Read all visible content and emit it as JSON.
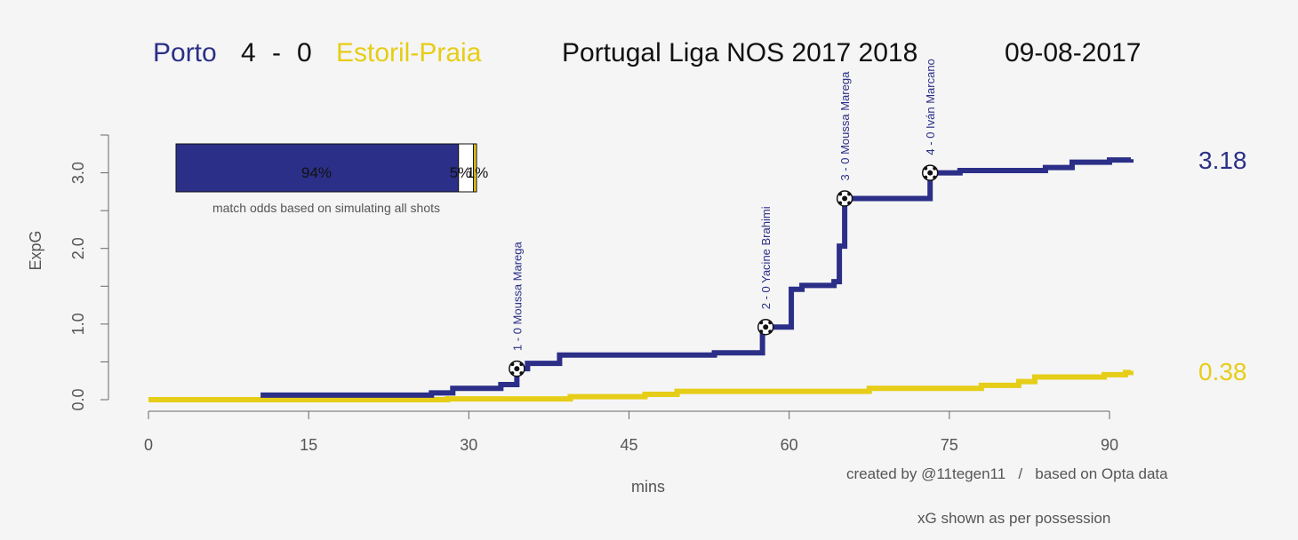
{
  "header": {
    "home_team": "Porto",
    "home_score": "4",
    "score_sep": "-",
    "away_score": "0",
    "away_team": "Estoril-Praia",
    "competition": "Portugal Liga NOS 2017 2018",
    "date": "09-08-2017"
  },
  "colors": {
    "home": "#2b2f87",
    "away": "#e6cd17",
    "axis": "#666666",
    "background": "#f5f5f5"
  },
  "odds_box": {
    "caption": "match odds based on simulating all shots",
    "home_win_pct": 94,
    "draw_pct": 5,
    "away_win_pct": 1,
    "home_label": "94%",
    "draw_label": "5%",
    "away_label": "1%"
  },
  "credits": {
    "created_by": "created by @11tegen11   /   based on Opta data",
    "possession_note": "xG shown as per possession"
  },
  "chart_data": {
    "type": "line",
    "step": true,
    "xlabel": "mins",
    "ylabel": "ExpG",
    "xlim": [
      0,
      92
    ],
    "ylim": [
      0,
      3.5
    ],
    "x_ticks": [
      0,
      15,
      30,
      45,
      60,
      75,
      90
    ],
    "y_ticks": [
      0,
      0.5,
      1.0,
      1.5,
      2.0,
      2.5,
      3.0,
      3.5
    ],
    "y_tick_labels": [
      {
        "value": 0,
        "label": "0.0"
      },
      {
        "value": 1.0,
        "label": "1.0"
      },
      {
        "value": 2.0,
        "label": "2.0"
      },
      {
        "value": 3.0,
        "label": "3.0"
      }
    ],
    "series": [
      {
        "name": "Porto",
        "final_label": "3.18",
        "x": [
          10.5,
          26.5,
          28.5,
          33,
          34.5,
          35.5,
          38.5,
          53,
          57.5,
          57.8,
          60.2,
          61.2,
          64.2,
          64.7,
          65.2,
          73.2,
          76,
          84,
          86.5,
          90,
          92
        ],
        "y": [
          0.06,
          0.09,
          0.15,
          0.2,
          0.41,
          0.48,
          0.59,
          0.62,
          0.95,
          0.96,
          1.46,
          1.51,
          1.56,
          2.03,
          2.66,
          3.0,
          3.03,
          3.07,
          3.14,
          3.17,
          3.18
        ]
      },
      {
        "name": "Estoril-Praia",
        "final_label": "0.38",
        "x": [
          0,
          28,
          39.5,
          46.5,
          49.5,
          67.5,
          78,
          81.5,
          83,
          89.5,
          91.5,
          92
        ],
        "y": [
          0.0,
          0.01,
          0.04,
          0.07,
          0.11,
          0.15,
          0.19,
          0.24,
          0.3,
          0.33,
          0.36,
          0.38
        ]
      }
    ],
    "goals": [
      {
        "minute": 34.5,
        "xg": 0.41,
        "label": "1 - 0 Moussa Marega"
      },
      {
        "minute": 57.8,
        "xg": 0.96,
        "label": "2 - 0 Yacine Brahimi"
      },
      {
        "minute": 65.2,
        "xg": 2.66,
        "label": "3 - 0 Moussa Marega"
      },
      {
        "minute": 73.2,
        "xg": 3.0,
        "label": "4 - 0 Iván Marcano"
      }
    ]
  }
}
